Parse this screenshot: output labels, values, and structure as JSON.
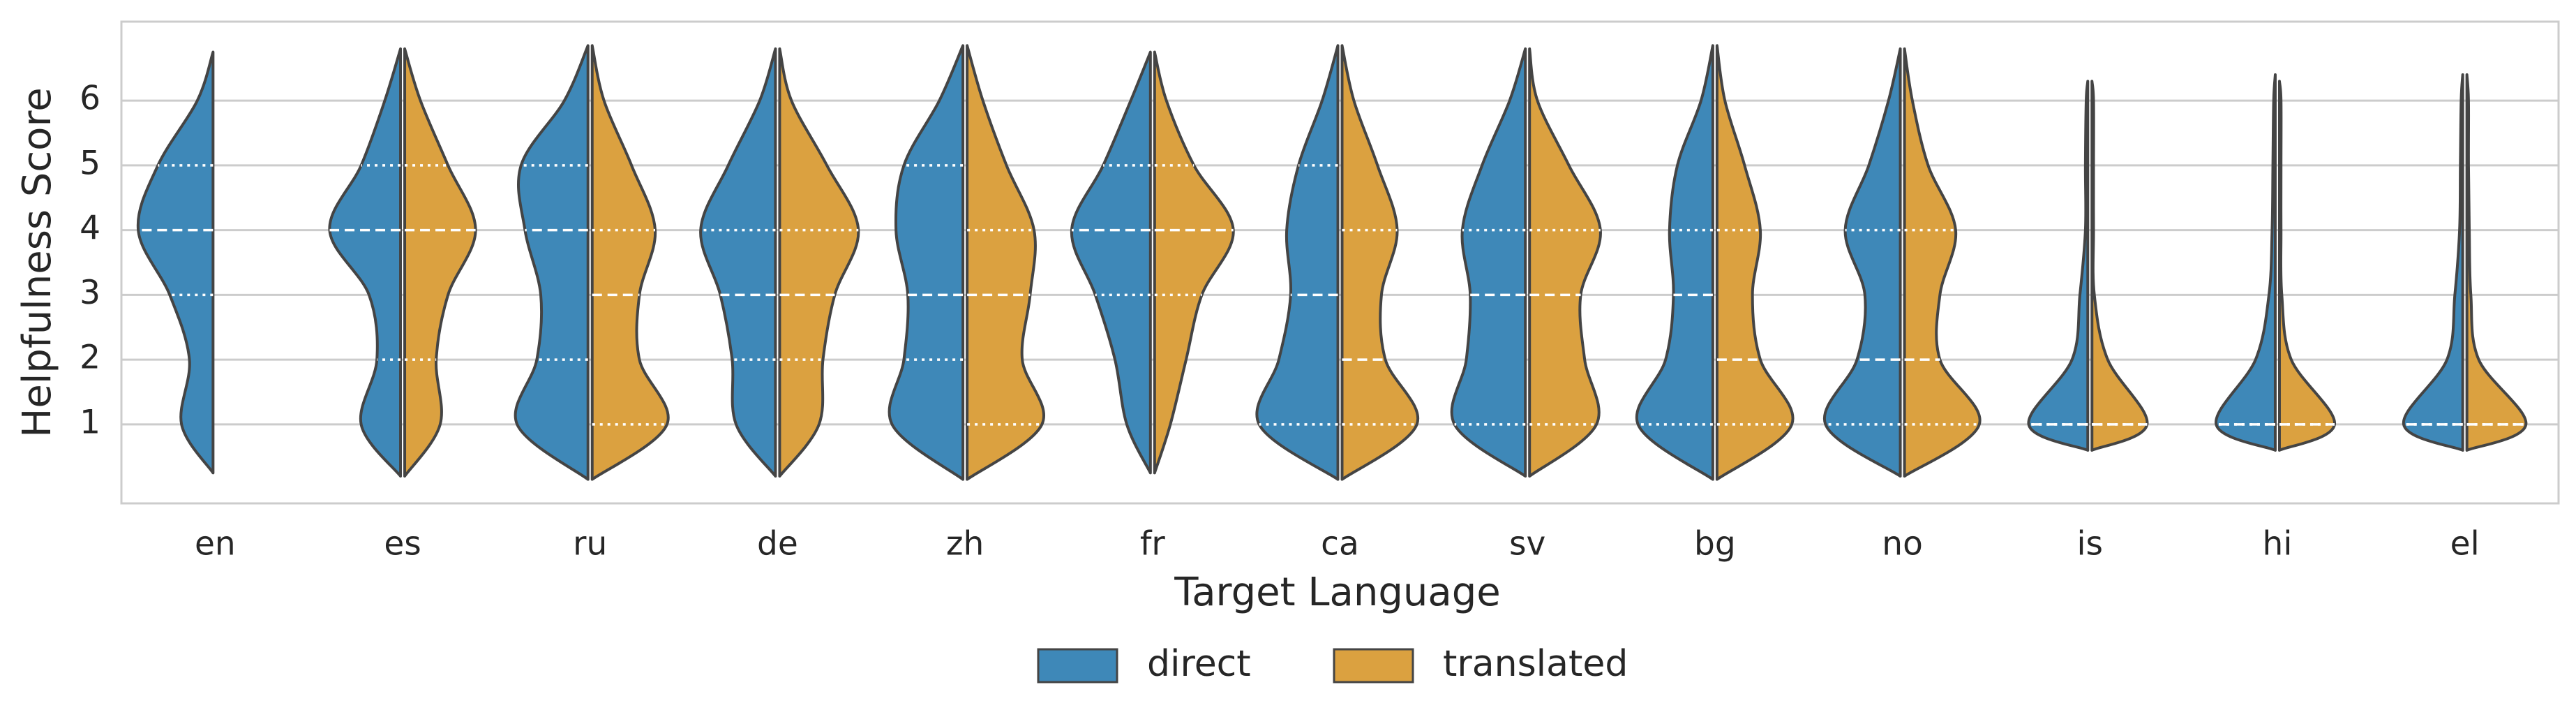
{
  "chart_data": {
    "type": "violin",
    "x_label": "Target Language",
    "y_label": "Helpfulness Score",
    "categories": [
      "en",
      "es",
      "ru",
      "de",
      "zh",
      "fr",
      "ca",
      "sv",
      "bg",
      "no",
      "is",
      "hi",
      "el"
    ],
    "kde_y": [
      1,
      2,
      3,
      4,
      5,
      6
    ],
    "ylim": [
      -0.22,
      7.22
    ],
    "yticks": [
      1,
      2,
      3,
      4,
      5,
      6
    ],
    "grid": true,
    "legend": "bottom",
    "series": [
      {
        "name": "direct",
        "color": "#3e88b8",
        "min": [
          0.25,
          0.2,
          0.15,
          0.2,
          0.15,
          0.25,
          0.15,
          0.2,
          0.15,
          0.2,
          0.6,
          0.6,
          0.6
        ],
        "max": [
          6.75,
          6.8,
          6.85,
          6.8,
          6.85,
          6.75,
          6.85,
          6.8,
          6.85,
          6.8,
          6.3,
          6.4,
          6.4
        ],
        "q1": [
          3,
          2,
          2,
          2,
          2,
          3,
          1,
          1,
          1,
          1,
          1,
          1,
          1
        ],
        "median": [
          4,
          4,
          4,
          3,
          3,
          4,
          3,
          3,
          3,
          2,
          1,
          1,
          1
        ],
        "q3": [
          5,
          5,
          5,
          4,
          5,
          5,
          5,
          4,
          4,
          4,
          1,
          1,
          1
        ],
        "density": [
          [
            0.4,
            0.3,
            0.55,
            0.95,
            0.7,
            0.2
          ],
          [
            0.5,
            0.3,
            0.4,
            0.9,
            0.5,
            0.2
          ],
          [
            0.9,
            0.65,
            0.6,
            0.8,
            0.85,
            0.3
          ],
          [
            0.5,
            0.55,
            0.7,
            0.95,
            0.6,
            0.2
          ],
          [
            0.9,
            0.75,
            0.7,
            0.85,
            0.75,
            0.3
          ],
          [
            0.3,
            0.45,
            0.7,
            1.0,
            0.6,
            0.25
          ],
          [
            1.0,
            0.75,
            0.6,
            0.65,
            0.5,
            0.2
          ],
          [
            0.9,
            0.75,
            0.7,
            0.8,
            0.55,
            0.2
          ],
          [
            0.95,
            0.6,
            0.5,
            0.55,
            0.45,
            0.15
          ],
          [
            0.95,
            0.55,
            0.45,
            0.7,
            0.4,
            0.15
          ],
          [
            0.75,
            0.2,
            0.1,
            0.03,
            0.03,
            0.02
          ],
          [
            0.75,
            0.25,
            0.08,
            0.04,
            0.03,
            0.02
          ],
          [
            0.75,
            0.2,
            0.1,
            0.04,
            0.03,
            0.02
          ]
        ]
      },
      {
        "name": "translated",
        "color": "#dba140",
        "min": [
          null,
          0.2,
          0.15,
          0.2,
          0.15,
          0.25,
          0.15,
          0.2,
          0.15,
          0.2,
          0.6,
          0.6,
          0.6
        ],
        "max": [
          null,
          6.8,
          6.85,
          6.8,
          6.85,
          6.75,
          6.85,
          6.8,
          6.85,
          6.8,
          6.3,
          6.3,
          6.4
        ],
        "q1": [
          null,
          2,
          1,
          2,
          1,
          3,
          1,
          1,
          1,
          1,
          1,
          1,
          1
        ],
        "median": [
          null,
          4,
          3,
          3,
          3,
          4,
          2,
          3,
          2,
          2,
          1,
          1,
          1
        ],
        "q3": [
          null,
          5,
          4,
          4,
          4,
          5,
          4,
          4,
          4,
          4,
          1,
          1,
          1
        ],
        "density": [
          null,
          [
            0.45,
            0.4,
            0.55,
            0.9,
            0.55,
            0.2
          ],
          [
            0.95,
            0.6,
            0.6,
            0.8,
            0.5,
            0.15
          ],
          [
            0.5,
            0.55,
            0.7,
            1.0,
            0.6,
            0.15
          ],
          [
            0.95,
            0.7,
            0.8,
            0.85,
            0.5,
            0.2
          ],
          [
            0.2,
            0.4,
            0.6,
            1.0,
            0.5,
            0.15
          ],
          [
            0.95,
            0.55,
            0.5,
            0.7,
            0.45,
            0.15
          ],
          [
            0.85,
            0.7,
            0.65,
            0.9,
            0.5,
            0.1
          ],
          [
            0.95,
            0.55,
            0.45,
            0.55,
            0.35,
            0.1
          ],
          [
            0.95,
            0.45,
            0.45,
            0.65,
            0.3,
            0.1
          ],
          [
            0.7,
            0.2,
            0.03,
            0.02,
            0.02,
            0.02
          ],
          [
            0.7,
            0.15,
            0.03,
            0.02,
            0.02,
            0.02
          ],
          [
            0.75,
            0.15,
            0.05,
            0.03,
            0.02,
            0.02
          ]
        ]
      }
    ]
  }
}
